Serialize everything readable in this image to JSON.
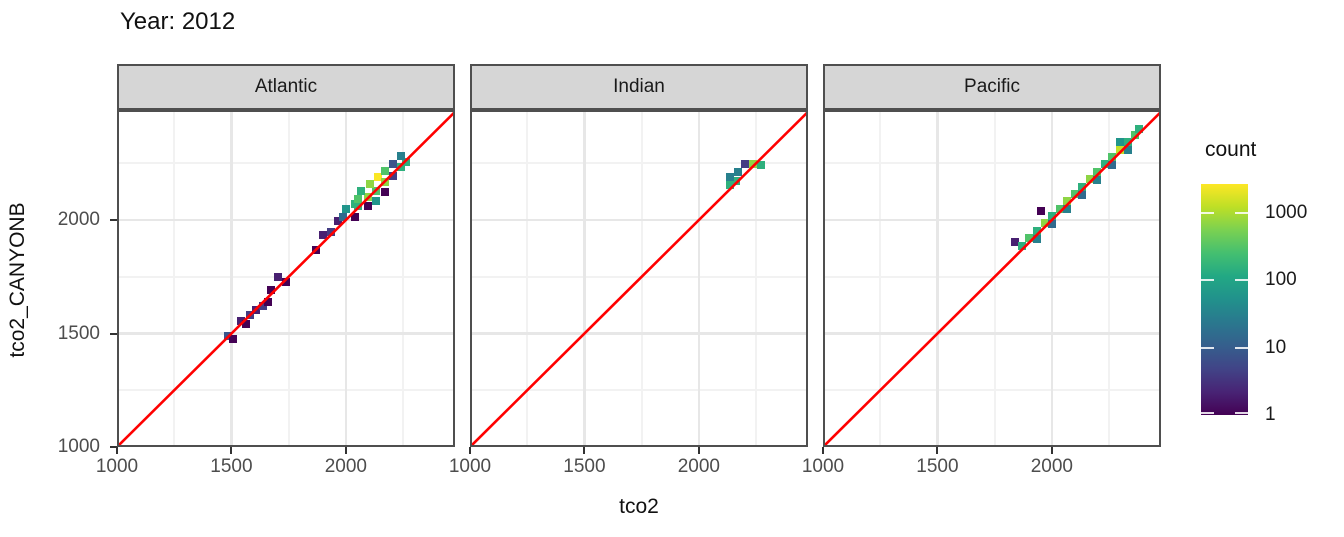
{
  "title": "Year: 2012",
  "x_axis": {
    "title": "tco2",
    "tick_labels": [
      "1000",
      "1500",
      "2000"
    ],
    "tick_values": [
      1000,
      1500,
      2000
    ]
  },
  "y_axis": {
    "title": "tco2_CANYONB",
    "tick_labels": [
      "1000",
      "1500",
      "2000"
    ],
    "tick_values": [
      1000,
      1500,
      2000
    ]
  },
  "legend": {
    "title": "count",
    "tick_labels": [
      "1000",
      "100",
      "10",
      "1"
    ],
    "tick_values": [
      1000,
      100,
      10,
      1
    ],
    "position": "right"
  },
  "colors": {
    "reference_line": "#ff0000",
    "panel_border": "#4f4f4f",
    "strip_background": "#d6d6d6",
    "grid_major": "#e7e7e7",
    "grid_minor": "#f2f2f2",
    "axis_text": "#4d4d4d",
    "text": "#1a1a1a",
    "viridis_palette": [
      "#440154",
      "#482475",
      "#414487",
      "#355f8d",
      "#2a788e",
      "#21918c",
      "#22a884",
      "#44bf70",
      "#7ad151",
      "#bddf26",
      "#fde725"
    ]
  },
  "chart_data": {
    "type": "heatmap",
    "subtype": "geom_bin2d scatter of binned counts",
    "title": "Year: 2012",
    "xlabel": "tco2",
    "ylabel": "tco2_CANYONB",
    "xlim": [
      1000,
      2477
    ],
    "ylim": [
      1000,
      2485
    ],
    "x_major_gridlines": [
      1500,
      2000
    ],
    "x_minor_gridlines": [
      1250,
      1750,
      2250
    ],
    "y_major_gridlines": [
      1500,
      2000
    ],
    "y_minor_gridlines": [
      1250,
      1750,
      2250
    ],
    "grid": "on",
    "bin_size_units": 33,
    "reference_line": {
      "type": "identity",
      "equation": "y = x",
      "color": "#ff0000"
    },
    "color_scale": {
      "palette": "viridis",
      "transform": "log10",
      "domain": [
        1,
        2700
      ],
      "legend_title": "count",
      "legend_ticks": [
        1,
        10,
        100,
        1000
      ]
    },
    "facets": [
      {
        "name": "Atlantic",
        "bins": [
          [
            1487,
            1489,
            8
          ],
          [
            1509,
            1478,
            1
          ],
          [
            1540,
            1556,
            2
          ],
          [
            1563,
            1543,
            1
          ],
          [
            1580,
            1582,
            4
          ],
          [
            1607,
            1604,
            2
          ],
          [
            1640,
            1622,
            4
          ],
          [
            1658,
            1640,
            1
          ],
          [
            1672,
            1692,
            1
          ],
          [
            1704,
            1750,
            2
          ],
          [
            1737,
            1728,
            1
          ],
          [
            1871,
            1868,
            1
          ],
          [
            1902,
            1934,
            2
          ],
          [
            1936,
            1947,
            4
          ],
          [
            1967,
            1996,
            2
          ],
          [
            1989,
            2013,
            15
          ],
          [
            2042,
            2013,
            1
          ],
          [
            2002,
            2048,
            60
          ],
          [
            2041,
            2070,
            150
          ],
          [
            2055,
            2062,
            150
          ],
          [
            2098,
            2062,
            1
          ],
          [
            2055,
            2093,
            300
          ],
          [
            2098,
            2102,
            700
          ],
          [
            2133,
            2084,
            60
          ],
          [
            2068,
            2128,
            150
          ],
          [
            2133,
            2128,
            300
          ],
          [
            2172,
            2123,
            1
          ],
          [
            2107,
            2158,
            700
          ],
          [
            2142,
            2189,
            2600
          ],
          [
            2172,
            2167,
            700
          ],
          [
            2207,
            2194,
            4
          ],
          [
            2172,
            2216,
            300
          ],
          [
            2242,
            2234,
            150
          ],
          [
            2207,
            2247,
            8
          ],
          [
            2264,
            2256,
            150
          ],
          [
            2242,
            2282,
            30
          ]
        ]
      },
      {
        "name": "Indian",
        "bins": [
          [
            2138,
            2154,
            150
          ],
          [
            2164,
            2172,
            150
          ],
          [
            2137,
            2189,
            30
          ],
          [
            2172,
            2211,
            30
          ],
          [
            2203,
            2247,
            4
          ],
          [
            2238,
            2247,
            700
          ],
          [
            2273,
            2242,
            150
          ]
        ]
      },
      {
        "name": "Pacific",
        "bins": [
          [
            1838,
            1902,
            2
          ],
          [
            1869,
            1887,
            150
          ],
          [
            1902,
            1920,
            300
          ],
          [
            1935,
            1915,
            30
          ],
          [
            1935,
            1952,
            150
          ],
          [
            1952,
            2040,
            1
          ],
          [
            1968,
            1985,
            700
          ],
          [
            2001,
            1982,
            15
          ],
          [
            2001,
            2017,
            150
          ],
          [
            2034,
            2050,
            300
          ],
          [
            2067,
            2047,
            30
          ],
          [
            2067,
            2082,
            700
          ],
          [
            2100,
            2115,
            300
          ],
          [
            2133,
            2112,
            15
          ],
          [
            2133,
            2147,
            150
          ],
          [
            2166,
            2180,
            700
          ],
          [
            2199,
            2177,
            30
          ],
          [
            2199,
            2212,
            300
          ],
          [
            2232,
            2245,
            150
          ],
          [
            2265,
            2242,
            15
          ],
          [
            2265,
            2277,
            300
          ],
          [
            2297,
            2345,
            60
          ],
          [
            2298,
            2310,
            1300
          ],
          [
            2331,
            2307,
            30
          ],
          [
            2331,
            2342,
            150
          ],
          [
            2364,
            2375,
            300
          ],
          [
            2380,
            2400,
            150
          ]
        ]
      }
    ]
  }
}
